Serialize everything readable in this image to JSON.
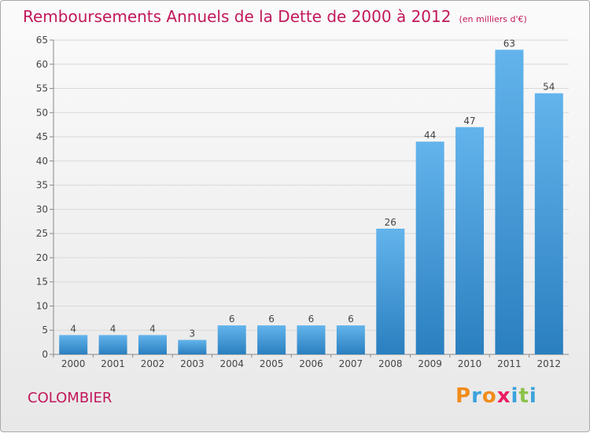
{
  "title": "Remboursements Annuels de la Dette de 2000 à 2012",
  "subtitle": "(en milliers d'€)",
  "city": "COLOMBIER",
  "logo": {
    "text": "Proxiti",
    "colors": [
      "#f28c1a",
      "#3ba3dc",
      "#f28c1a",
      "#e91e63",
      "#3ba3dc",
      "#8bc34a",
      "#3ba3dc"
    ]
  },
  "colors": {
    "bar_light": "#63b4ec",
    "bar_dark": "#2a7fbf",
    "text": "#444444",
    "grid": "#d8d8d8"
  },
  "chart_data": {
    "type": "bar",
    "categories": [
      "2000",
      "2001",
      "2002",
      "2003",
      "2004",
      "2005",
      "2006",
      "2007",
      "2008",
      "2009",
      "2010",
      "2011",
      "2012"
    ],
    "values": [
      4,
      4,
      4,
      3,
      6,
      6,
      6,
      6,
      26,
      44,
      47,
      63,
      54
    ],
    "title": "Remboursements Annuels de la Dette de 2000 à 2012",
    "xlabel": "",
    "ylabel": "",
    "ylim": [
      0,
      65
    ],
    "yticks": [
      0,
      5,
      10,
      15,
      20,
      25,
      30,
      35,
      40,
      45,
      50,
      55,
      60,
      65
    ],
    "grid": true,
    "data_labels": true
  }
}
